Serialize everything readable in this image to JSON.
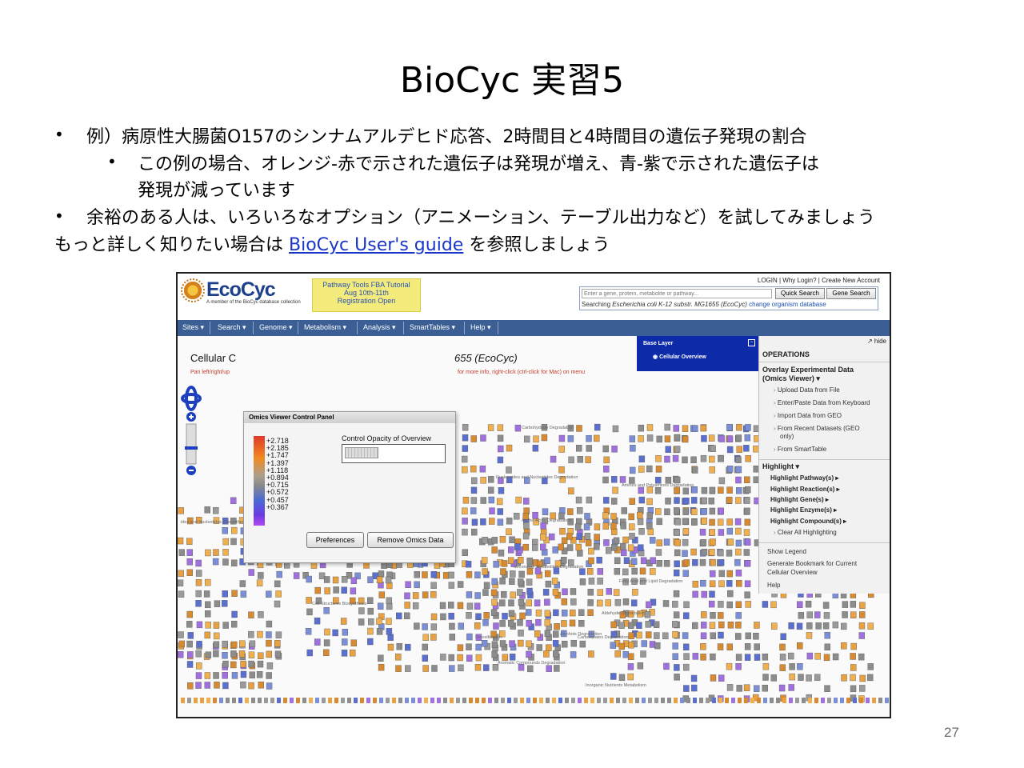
{
  "slide": {
    "title": "BioCyc 実習5",
    "bullets": [
      {
        "marker": "•",
        "text": "例）病原性大腸菌O157のシンナムアルデヒド応答、2時間目と4時間目の遺伝子発現の割合"
      },
      {
        "marker": "•",
        "text_line1": "この例の場合、オレンジ-赤で示された遺伝子は発現が増え、青-紫で示された遺伝子は",
        "text_line2": "発現が減っています"
      },
      {
        "marker": "•",
        "text": "余裕のある人は、いろいろなオプション（アニメーション、テーブル出力など）を試してみましょう"
      }
    ],
    "guide_prefix": "もっと詳しく知りたい場合は",
    "guide_link": "BioCyc User's guide",
    "guide_suffix": "を参照しましょう",
    "page_number": "27"
  },
  "screenshot": {
    "logo_text": "EcoCyc",
    "logo_sub": "A member of the BioCyc database collection",
    "promo": [
      "Pathway Tools FBA Tutorial",
      "Aug 10th-11th",
      "Registration Open"
    ],
    "account_links": "LOGIN | Why Login? | Create New Account",
    "search_placeholder": "Enter a gene, protein, metabolite or pathway...",
    "quick_search": "Quick Search",
    "gene_search": "Gene Search",
    "searching_prefix": "Searching",
    "searching_org": "Escherichia coli K-12 substr. MG1655 (EcoCyc)",
    "change_org": "change organism database",
    "nav": [
      "Sites ▾",
      "Search ▾",
      "Genome ▾",
      "Metabolism ▾",
      "Analysis ▾",
      "SmartTables ▾",
      "Help ▾"
    ],
    "map_title_left": "Cellular C",
    "map_title_right": "655 (EcoCyc)",
    "map_hint_left": "Pan left/right/up",
    "map_hint_right": "for more info, right-click (ctrl-click for Mac) on menu",
    "omics": {
      "title": "Omics Viewer Control Panel",
      "scale": [
        "+2.718",
        "+2.185",
        "+1.747",
        "+1.397",
        "+1.118",
        "+0.894",
        "+0.715",
        "+0.572",
        "+0.457",
        "+0.367"
      ],
      "opacity_label": "Control Opacity of Overview",
      "preferences": "Preferences",
      "remove": "Remove Omics Data"
    },
    "base_layer": {
      "title": "Base Layer",
      "item": "Cellular Overview",
      "close": "−"
    },
    "operations": {
      "hide": "hide",
      "title": "OPERATIONS",
      "overlay_head_1": "Overlay Experimental Data",
      "overlay_head_2": "(Omics Viewer) ▾",
      "overlay_items": [
        "Upload Data from File",
        "Enter/Paste Data from Keyboard",
        "Import Data from GEO",
        "From Recent Datasets (GEO",
        "only)",
        "From SmartTable"
      ],
      "highlight_head": "Highlight ▾",
      "highlight_items": [
        "Highlight Pathway(s) ▸",
        "Highlight Reaction(s) ▸",
        "Highlight Gene(s) ▸",
        "Highlight Enzyme(s) ▸",
        "Highlight Compound(s) ▸"
      ],
      "clear": "Clear All Highlighting",
      "bottom_items": [
        "Show Legend",
        "Generate Bookmark for Current",
        "Cellular Overview",
        "Help"
      ]
    },
    "map_labels": [
      "Carbohydrate Degradation",
      "Nucleosides and Nucleotides Degradation",
      "Amines and Polyamines Degradation",
      "Amino Acids Degradation",
      "Secondary Metabolites Degradation",
      "Fatty Acid and Lipid Degradation",
      "Cell Structures Biosynthesis",
      "Aldehyde Degradation",
      "Carboxylates Degradation",
      "Alcohols Degradation",
      "Detoxification",
      "Aromatic Compounds Degradation",
      "Inorganic Nutrients Metabolism",
      "ides and Nucleotides Biosynthesis"
    ]
  }
}
